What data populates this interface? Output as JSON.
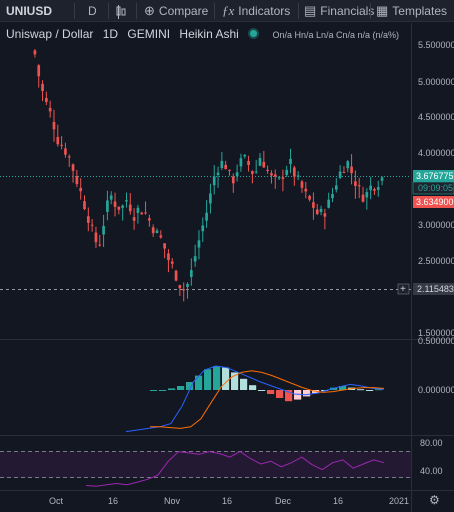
{
  "toolbar": {
    "symbol": "UNIUSD",
    "interval": "D",
    "compare": "Compare",
    "indicators": "Indicators",
    "financials": "Financials",
    "templates": "Templates"
  },
  "legend": {
    "title": "Uniswap / Dollar",
    "interval": "1D",
    "exchange": "GEMINI",
    "chart_style": "Heikin Ashi",
    "ohlc": "On/a Hn/a Ln/a Cn/a n/a (n/a%)"
  },
  "price_axis": {
    "ticks": [
      "5.500000",
      "5.000000",
      "4.500000",
      "4.000000",
      "3.000000",
      "2.500000",
      "1.500000"
    ],
    "last_price": "3.676775",
    "countdown": "09:09:05",
    "low_marker": "3.634900",
    "crosshair_price": "2.115483"
  },
  "macd_axis": {
    "ticks": [
      "0.500000",
      "0.000000"
    ]
  },
  "rsi_axis": {
    "ticks": [
      "80.00",
      "40.00"
    ]
  },
  "time_axis": {
    "ticks": [
      "Oct",
      "16",
      "Nov",
      "16",
      "Dec",
      "16",
      "2021"
    ]
  },
  "colors": {
    "up": "#26a69a",
    "down": "#ef5350",
    "macd": "#2962ff",
    "signal": "#ff6d00",
    "rsi": "#9c27b0",
    "last_price": "#26a69a",
    "low": "#ef5350"
  },
  "chart_data": [
    {
      "type": "candlestick",
      "title": "Uniswap / Dollar 1D GEMINI Heikin Ashi",
      "ylim": [
        1.5,
        5.5
      ],
      "series": [
        {
          "name": "UNIUSD",
          "close_path": [
            5.4,
            4.95,
            4.7,
            4.5,
            4.2,
            4.1,
            3.95,
            3.7,
            3.45,
            3.2,
            2.9,
            2.7,
            3.1,
            3.45,
            3.3,
            3.25,
            3.4,
            3.15,
            3.25,
            3.2,
            3.05,
            2.9,
            2.8,
            2.55,
            2.4,
            2.2,
            2.1,
            2.35,
            2.7,
            3.0,
            3.3,
            3.7,
            3.9,
            3.85,
            3.6,
            3.8,
            3.95,
            3.85,
            3.7,
            4.0,
            3.8,
            3.65,
            3.6,
            3.75,
            3.9,
            3.7,
            3.55,
            3.4,
            3.3,
            3.15,
            3.2,
            3.35,
            3.6,
            3.8,
            3.9,
            3.7,
            3.5,
            3.4,
            3.55,
            3.6,
            3.677
          ]
        }
      ]
    },
    {
      "type": "histogram+line",
      "ylim": [
        -0.55,
        0.6
      ],
      "series": [
        {
          "name": "histogram",
          "values": [
            0.0,
            0.0,
            0.02,
            0.05,
            0.1,
            0.18,
            0.26,
            0.3,
            0.28,
            0.22,
            0.14,
            0.06,
            0.0,
            -0.05,
            -0.1,
            -0.14,
            -0.12,
            -0.08,
            -0.04,
            0.0,
            0.03,
            0.05,
            0.03,
            0.01,
            0.0,
            0.01
          ]
        },
        {
          "name": "macd",
          "values": [
            -0.52,
            -0.5,
            -0.48,
            -0.46,
            -0.42,
            -0.2,
            0.1,
            0.25,
            0.3,
            0.28,
            0.22,
            0.16,
            0.1,
            0.05,
            0.0,
            -0.05,
            -0.06,
            -0.04,
            0.0,
            0.04,
            0.07,
            0.05,
            0.02,
            0.01
          ]
        },
        {
          "name": "signal",
          "values": [
            -0.46,
            -0.46,
            -0.47,
            -0.48,
            -0.46,
            -0.36,
            -0.16,
            0.04,
            0.16,
            0.22,
            0.24,
            0.22,
            0.18,
            0.13,
            0.08,
            0.03,
            -0.01,
            -0.03,
            -0.02,
            0.0,
            0.02,
            0.03,
            0.03,
            0.02
          ]
        }
      ]
    },
    {
      "type": "line",
      "ylim": [
        20,
        95
      ],
      "series": [
        {
          "name": "rsi",
          "values": [
            25,
            24,
            26,
            28,
            26,
            30,
            34,
            40,
            60,
            74,
            72,
            70,
            74,
            71,
            66,
            74,
            64,
            56,
            60,
            52,
            58,
            66,
            55,
            48,
            58,
            62,
            50,
            56,
            62,
            58
          ]
        }
      ]
    }
  ]
}
